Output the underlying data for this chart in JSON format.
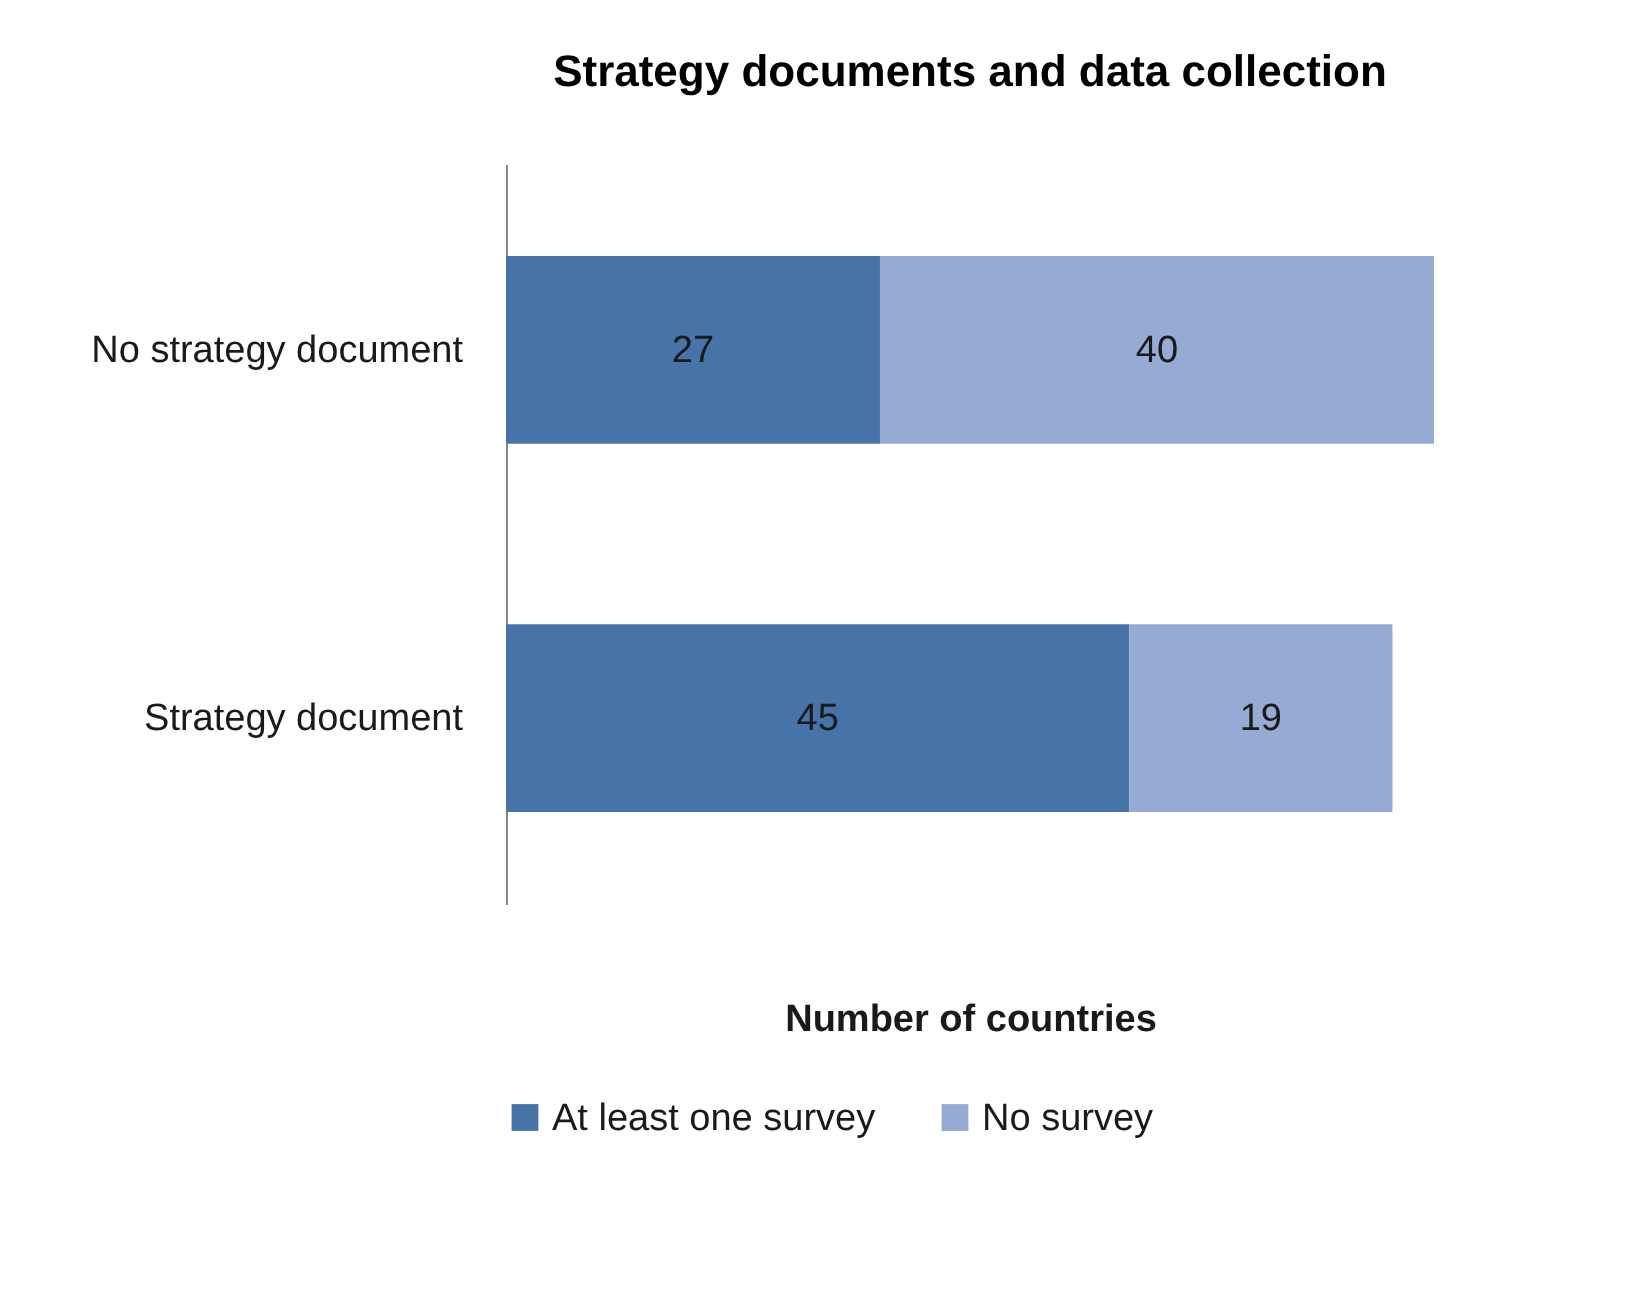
{
  "chart_data": {
    "type": "bar",
    "title": "Strategy documents and data collection",
    "xlabel": "Number of countries",
    "categories": [
      "No strategy document",
      "Strategy document"
    ],
    "orientation": "horizontal",
    "stacked": true,
    "data_labels": true,
    "legend": "bottom",
    "grid": false,
    "tick_labels": "y",
    "series": [
      {
        "name": "At least one survey",
        "color": "#4674a9",
        "values": [
          27,
          45
        ]
      },
      {
        "name": "No survey",
        "color": "#95abd3",
        "values": [
          40,
          19
        ]
      }
    ]
  }
}
